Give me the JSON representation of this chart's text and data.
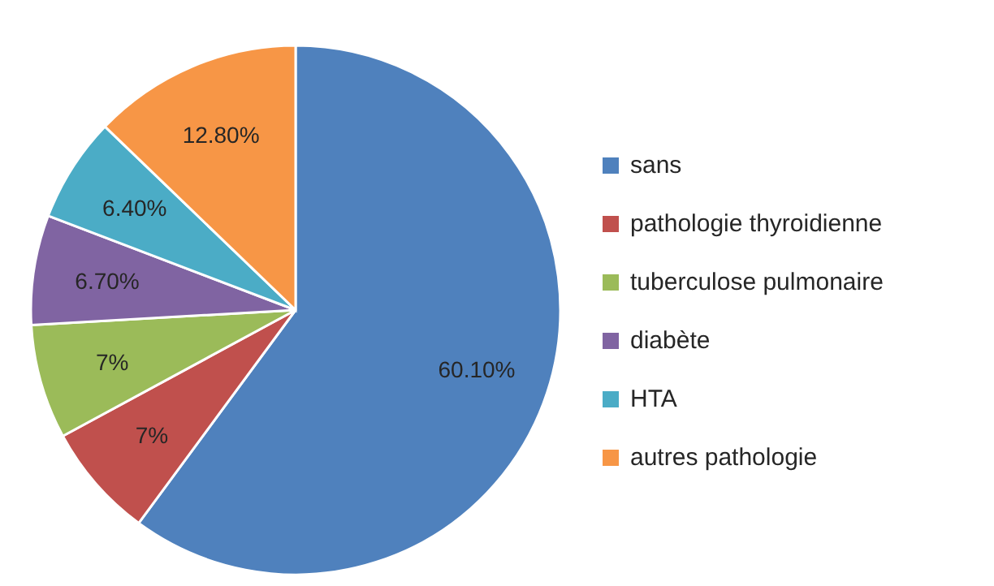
{
  "chart_data": {
    "type": "pie",
    "categories": [
      "sans",
      "pathologie thyroidienne",
      "tuberculose pulmonaire",
      "diabète",
      "HTA",
      "autres pathologie"
    ],
    "values": [
      60.1,
      7,
      7,
      6.7,
      6.4,
      12.8
    ],
    "colors": [
      "#4f81bd",
      "#c0504d",
      "#9bbb59",
      "#8064a2",
      "#4bacc6",
      "#f79646"
    ],
    "value_labels": [
      "60.10%",
      "7%",
      "7%",
      "6.70%",
      "6.40%",
      "12.80%"
    ],
    "legend": "right"
  }
}
